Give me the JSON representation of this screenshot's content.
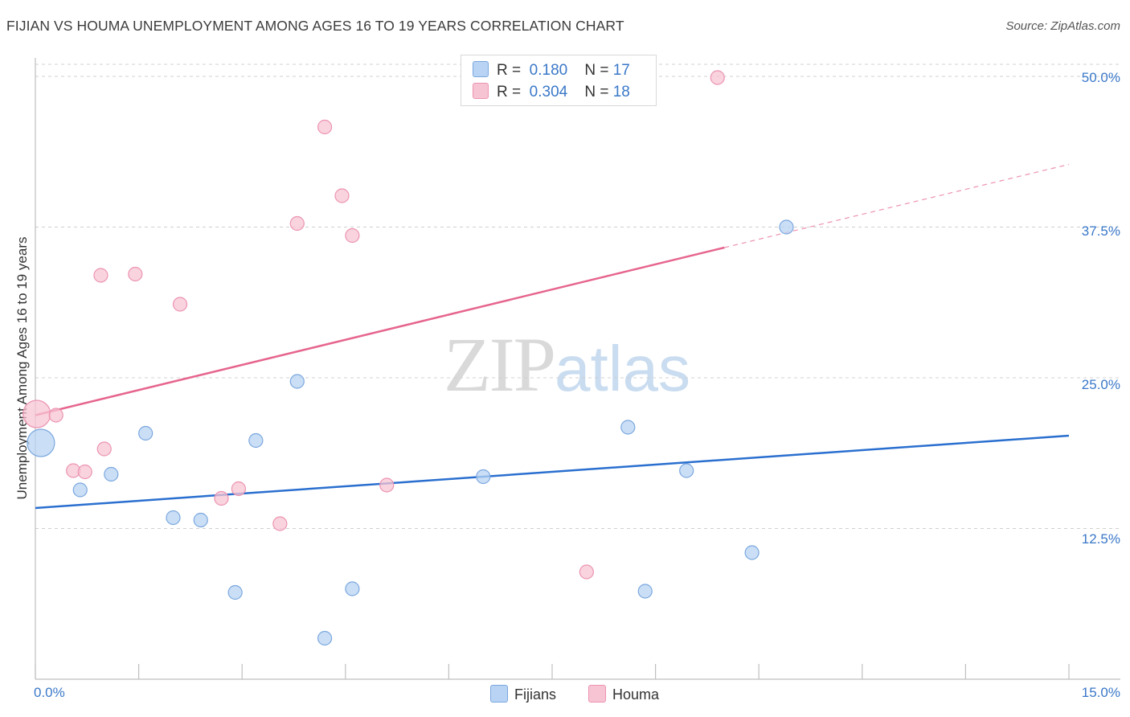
{
  "title": "FIJIAN VS HOUMA UNEMPLOYMENT AMONG AGES 16 TO 19 YEARS CORRELATION CHART",
  "source": "Source: ZipAtlas.com",
  "watermark": {
    "zip": "ZIP",
    "atlas": "atlas"
  },
  "colors": {
    "fijians_fill": "#b8d3f3",
    "fijians_stroke": "#7aa7de",
    "fijians_line": "#2a6fcf",
    "houma_fill": "#f7c4d3",
    "houma_stroke": "#ec93b0",
    "houma_line": "#e6658e",
    "grid": "#d0d0d0",
    "axis_label": "#3a78c8"
  },
  "stats": [
    {
      "r_label": "R =",
      "r_value": "0.180",
      "n_label": "N =",
      "n_value": "17"
    },
    {
      "r_label": "R =",
      "r_value": "0.304",
      "n_label": "N =",
      "n_value": "18"
    }
  ],
  "legend": [
    "Fijians",
    "Houma"
  ],
  "chart_data": {
    "type": "scatter",
    "title": "FIJIAN VS HOUMA UNEMPLOYMENT AMONG AGES 16 TO 19 YEARS CORRELATION CHART",
    "xlabel": "",
    "ylabel": "Unemployment Among Ages 16 to 19 years",
    "xlim": [
      0,
      15
    ],
    "ylim": [
      0,
      51
    ],
    "x_tick_labels": [
      "0.0%",
      "15.0%"
    ],
    "y_ticks": [
      12.5,
      25.0,
      37.5,
      50.0
    ],
    "y_tick_labels": [
      "12.5%",
      "25.0%",
      "37.5%",
      "50.0%"
    ],
    "grid": true,
    "legend_position": "bottom-center",
    "series": [
      {
        "name": "Fijians",
        "points": [
          {
            "x": 0.08,
            "y": 19.6,
            "size": "large"
          },
          {
            "x": 0.65,
            "y": 15.7
          },
          {
            "x": 1.1,
            "y": 17.0
          },
          {
            "x": 1.6,
            "y": 20.4
          },
          {
            "x": 2.0,
            "y": 13.4
          },
          {
            "x": 2.4,
            "y": 13.2
          },
          {
            "x": 2.9,
            "y": 7.2
          },
          {
            "x": 3.2,
            "y": 19.8
          },
          {
            "x": 3.8,
            "y": 24.7
          },
          {
            "x": 4.2,
            "y": 3.4
          },
          {
            "x": 4.6,
            "y": 7.5
          },
          {
            "x": 6.5,
            "y": 16.8
          },
          {
            "x": 8.6,
            "y": 20.9
          },
          {
            "x": 8.85,
            "y": 7.3
          },
          {
            "x": 9.45,
            "y": 17.3
          },
          {
            "x": 10.4,
            "y": 10.5
          },
          {
            "x": 10.9,
            "y": 37.5
          }
        ],
        "trend": {
          "x0": 0,
          "y0": 14.2,
          "x1": 15,
          "y1": 20.2
        }
      },
      {
        "name": "Houma",
        "points": [
          {
            "x": 0.02,
            "y": 22.0,
            "size": "large"
          },
          {
            "x": 0.3,
            "y": 21.9
          },
          {
            "x": 0.55,
            "y": 17.3
          },
          {
            "x": 0.72,
            "y": 17.2
          },
          {
            "x": 0.95,
            "y": 33.5
          },
          {
            "x": 1.0,
            "y": 19.1
          },
          {
            "x": 1.45,
            "y": 33.6
          },
          {
            "x": 2.1,
            "y": 31.1
          },
          {
            "x": 2.7,
            "y": 15.0
          },
          {
            "x": 2.95,
            "y": 15.8
          },
          {
            "x": 3.55,
            "y": 12.9
          },
          {
            "x": 3.8,
            "y": 37.8
          },
          {
            "x": 4.2,
            "y": 45.8
          },
          {
            "x": 4.45,
            "y": 40.1
          },
          {
            "x": 4.6,
            "y": 36.8
          },
          {
            "x": 5.1,
            "y": 16.1
          },
          {
            "x": 8.0,
            "y": 8.9
          },
          {
            "x": 9.9,
            "y": 49.9
          }
        ],
        "trend": {
          "x0": 0,
          "y0": 21.9,
          "x1": 10.0,
          "y1": 35.8,
          "dashed_to_x": 15,
          "dashed_to_y": 42.7
        }
      }
    ]
  }
}
